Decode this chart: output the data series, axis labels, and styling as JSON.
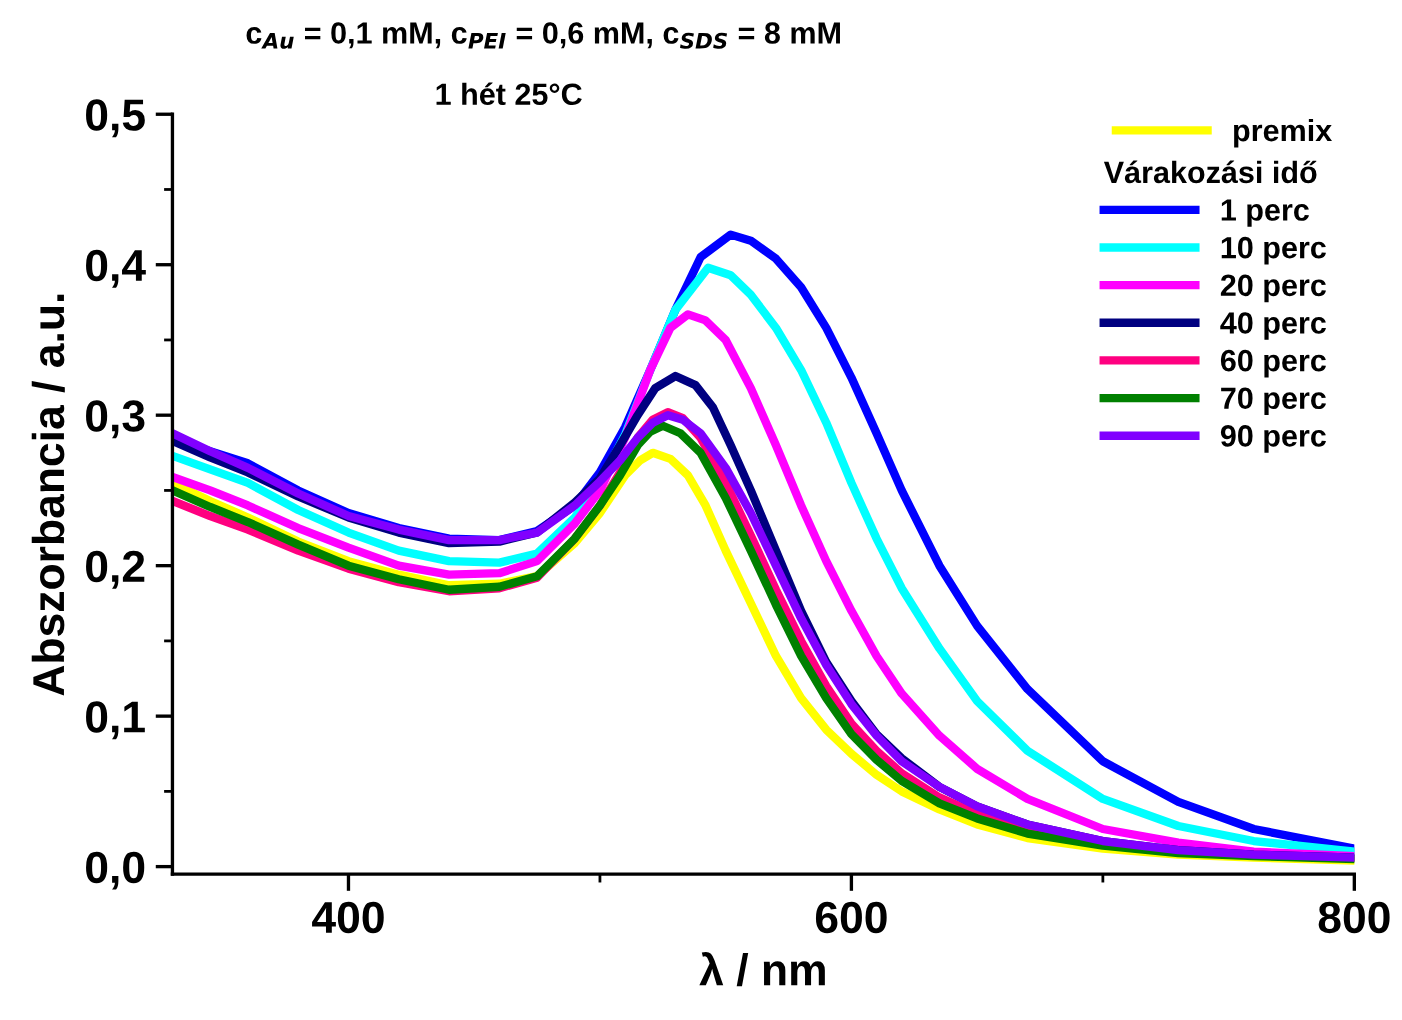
{
  "chart_data": {
    "type": "line",
    "title": "c$_{Au}$ = 0,1 mM, c$_{PEI}$ = 0,6 mM, c$_{SDS}$ = 8 mM",
    "annotations": [
      "1 hét 25°C"
    ],
    "xlabel": "λ / nm",
    "ylabel": "Abszorbancia / a.u.",
    "legend_title": "Várakozási idő",
    "legend": "top right",
    "grid": false,
    "marker": "none",
    "line_style": "solid",
    "xlim": [
      330,
      800
    ],
    "xticks": [
      400,
      600,
      800
    ],
    "ylim": [
      -0.005,
      0.5
    ],
    "yticks": [
      {
        "value": 0,
        "label": "0,0"
      },
      {
        "value": 0.1,
        "label": "0,1"
      },
      {
        "value": 0.2,
        "label": "0,2"
      },
      {
        "value": 0.3,
        "label": "0,3"
      },
      {
        "value": 0.4,
        "label": "0,4"
      },
      {
        "value": 0.5,
        "label": "0,5"
      }
    ],
    "series": [
      {
        "name": "premix",
        "color": "#ffff00",
        "x": [
          330,
          345,
          360,
          380,
          400,
          420,
          440,
          460,
          475,
          490,
          500,
          510,
          516,
          521,
          528,
          535,
          542,
          550,
          560,
          570,
          580,
          590,
          600,
          610,
          620,
          635,
          650,
          670,
          700,
          730,
          760,
          800
        ],
        "values": [
          0.255,
          0.243,
          0.232,
          0.216,
          0.203,
          0.194,
          0.187,
          0.188,
          0.193,
          0.215,
          0.235,
          0.26,
          0.27,
          0.275,
          0.271,
          0.26,
          0.24,
          0.21,
          0.175,
          0.14,
          0.112,
          0.091,
          0.075,
          0.061,
          0.05,
          0.038,
          0.028,
          0.019,
          0.012,
          0.008,
          0.006,
          0.004
        ]
      },
      {
        "name": "1 perc",
        "color": "#0000ff",
        "x": [
          330,
          345,
          360,
          380,
          400,
          420,
          440,
          460,
          475,
          490,
          500,
          510,
          520,
          530,
          540,
          552,
          560,
          570,
          580,
          590,
          600,
          610,
          620,
          635,
          650,
          670,
          700,
          730,
          760,
          800
        ],
        "values": [
          0.284,
          0.276,
          0.268,
          0.25,
          0.235,
          0.225,
          0.218,
          0.217,
          0.223,
          0.24,
          0.262,
          0.292,
          0.33,
          0.37,
          0.405,
          0.42,
          0.416,
          0.404,
          0.385,
          0.358,
          0.325,
          0.288,
          0.25,
          0.2,
          0.16,
          0.118,
          0.07,
          0.043,
          0.025,
          0.012
        ]
      },
      {
        "name": "10 perc",
        "color": "#00ffff",
        "x": [
          330,
          345,
          360,
          380,
          400,
          420,
          440,
          460,
          475,
          490,
          500,
          510,
          520,
          530,
          543,
          552,
          560,
          570,
          580,
          590,
          600,
          610,
          620,
          635,
          650,
          670,
          700,
          730,
          760,
          800
        ],
        "values": [
          0.273,
          0.264,
          0.255,
          0.237,
          0.222,
          0.21,
          0.203,
          0.202,
          0.208,
          0.232,
          0.255,
          0.287,
          0.33,
          0.37,
          0.398,
          0.393,
          0.38,
          0.358,
          0.33,
          0.295,
          0.255,
          0.218,
          0.185,
          0.145,
          0.11,
          0.077,
          0.045,
          0.027,
          0.017,
          0.01
        ]
      },
      {
        "name": "20 perc",
        "color": "#ff00ff",
        "x": [
          330,
          345,
          360,
          380,
          400,
          420,
          440,
          460,
          475,
          490,
          500,
          510,
          520,
          528,
          535,
          542,
          550,
          560,
          570,
          580,
          590,
          600,
          610,
          620,
          635,
          650,
          670,
          700,
          730,
          760,
          800
        ],
        "values": [
          0.259,
          0.25,
          0.24,
          0.225,
          0.212,
          0.2,
          0.194,
          0.195,
          0.203,
          0.228,
          0.25,
          0.285,
          0.33,
          0.358,
          0.367,
          0.363,
          0.35,
          0.318,
          0.28,
          0.24,
          0.203,
          0.17,
          0.14,
          0.115,
          0.087,
          0.065,
          0.045,
          0.025,
          0.016,
          0.01,
          0.007
        ]
      },
      {
        "name": "40 perc",
        "color": "#000080",
        "x": [
          330,
          345,
          360,
          380,
          400,
          420,
          440,
          460,
          475,
          490,
          500,
          508,
          515,
          522,
          530,
          538,
          545,
          552,
          560,
          570,
          580,
          590,
          600,
          610,
          620,
          635,
          650,
          670,
          700,
          730,
          760,
          800
        ],
        "values": [
          0.283,
          0.272,
          0.262,
          0.246,
          0.232,
          0.222,
          0.215,
          0.216,
          0.222,
          0.242,
          0.258,
          0.28,
          0.3,
          0.318,
          0.326,
          0.32,
          0.305,
          0.28,
          0.25,
          0.21,
          0.17,
          0.136,
          0.11,
          0.088,
          0.072,
          0.053,
          0.04,
          0.028,
          0.017,
          0.011,
          0.008,
          0.006
        ]
      },
      {
        "name": "60 perc",
        "color": "#ff0080",
        "x": [
          330,
          345,
          360,
          380,
          400,
          420,
          440,
          460,
          475,
          490,
          500,
          508,
          515,
          521,
          527,
          533,
          540,
          550,
          560,
          570,
          580,
          590,
          600,
          610,
          620,
          635,
          650,
          670,
          700
        ],
        "values": [
          0.243,
          0.233,
          0.224,
          0.21,
          0.198,
          0.189,
          0.183,
          0.185,
          0.192,
          0.218,
          0.24,
          0.262,
          0.285,
          0.297,
          0.302,
          0.298,
          0.285,
          0.255,
          0.22,
          0.184,
          0.15,
          0.12,
          0.095,
          0.077,
          0.062,
          0.046,
          0.035,
          0.024,
          0.015
        ]
      },
      {
        "name": "70 perc",
        "color": "#008000",
        "x": [
          330,
          345,
          360,
          380,
          400,
          420,
          440,
          460,
          475,
          490,
          500,
          508,
          515,
          520,
          525,
          532,
          540,
          550,
          560,
          570,
          580,
          590,
          600,
          610,
          620,
          635,
          650,
          670,
          700,
          730,
          760,
          800
        ],
        "values": [
          0.25,
          0.239,
          0.229,
          0.214,
          0.2,
          0.191,
          0.184,
          0.186,
          0.193,
          0.218,
          0.24,
          0.26,
          0.28,
          0.289,
          0.293,
          0.288,
          0.275,
          0.245,
          0.21,
          0.174,
          0.14,
          0.112,
          0.088,
          0.071,
          0.057,
          0.042,
          0.032,
          0.022,
          0.014,
          0.009,
          0.007,
          0.005
        ]
      },
      {
        "name": "90 perc",
        "color": "#8000ff",
        "x": [
          330,
          345,
          360,
          380,
          400,
          420,
          440,
          460,
          475,
          490,
          500,
          508,
          515,
          521,
          527,
          533,
          540,
          550,
          560,
          570,
          580,
          590,
          600,
          610,
          620,
          635,
          650,
          670,
          700,
          730,
          760,
          800
        ],
        "values": [
          0.288,
          0.276,
          0.265,
          0.248,
          0.233,
          0.224,
          0.217,
          0.217,
          0.222,
          0.24,
          0.256,
          0.27,
          0.285,
          0.295,
          0.3,
          0.297,
          0.288,
          0.265,
          0.235,
          0.2,
          0.165,
          0.134,
          0.108,
          0.087,
          0.07,
          0.053,
          0.04,
          0.028,
          0.017,
          0.011,
          0.008,
          0.006
        ]
      }
    ]
  }
}
